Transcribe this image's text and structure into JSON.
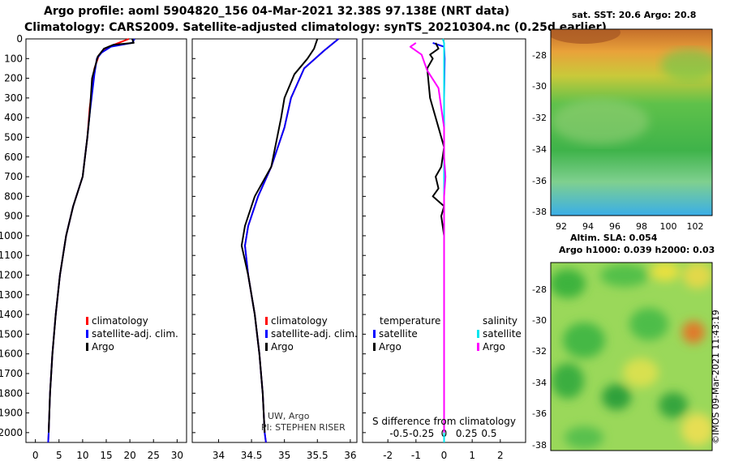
{
  "header": {
    "line1": "Argo profile: aoml 5904820_156 04-Mar-2021 32.38S 97.138E (NRT data)",
    "line2": "Climatology: CARS2009. Satellite-adjusted climatology: synTS_20210304.nc (0.25d earlier)"
  },
  "colors": {
    "climatology": "#ff0000",
    "satellite_adj": "#0000ff",
    "argo": "#000000",
    "temp_satellite": "#0000ff",
    "temp_argo": "#000000",
    "sal_satellite": "#00e5ee",
    "sal_argo": "#ff00ff"
  },
  "sst_map": {
    "title": "sat. SST: 20.6 Argo: 20.8",
    "lat_ticks": [
      "-28",
      "-30",
      "-32",
      "-34",
      "-36",
      "-38"
    ],
    "lon_ticks": [
      "92",
      "94",
      "96",
      "98",
      "100",
      "102"
    ]
  },
  "sla_map": {
    "title1": "Altim. SLA: 0.054",
    "title2": "Argo h1000: 0.039 h2000: 0.03",
    "lat_ticks": [
      "-28",
      "-30",
      "-32",
      "-34",
      "-36",
      "-38"
    ]
  },
  "credit": "©IMOS 09-Mar-2021 11:43:19",
  "chart_data": [
    {
      "type": "line",
      "name": "temperature-profile",
      "xlabel": "",
      "ylabel": "",
      "xlim": [
        -2,
        32
      ],
      "ylim": [
        2050,
        0
      ],
      "xticks": [
        0,
        5,
        10,
        15,
        20,
        25,
        30
      ],
      "yticks": [
        0,
        100,
        200,
        300,
        400,
        500,
        600,
        700,
        800,
        900,
        1000,
        1100,
        1200,
        1300,
        1400,
        1500,
        1600,
        1700,
        1800,
        1900,
        2000
      ],
      "legend": [
        "climatology",
        "satellite-adj. clim.",
        "Argo"
      ],
      "series": [
        {
          "name": "climatology",
          "color": "#ff0000",
          "points": [
            [
              19.8,
              0
            ],
            [
              15.5,
              40
            ],
            [
              13.5,
              80
            ],
            [
              12.5,
              150
            ],
            [
              12,
              250
            ],
            [
              11.5,
              350
            ],
            [
              11,
              500
            ],
            [
              10,
              700
            ],
            [
              8,
              850
            ],
            [
              6.5,
              1000
            ],
            [
              5.2,
              1200
            ],
            [
              4.3,
              1400
            ],
            [
              3.6,
              1600
            ],
            [
              3.1,
              1800
            ],
            [
              2.8,
              2000
            ],
            [
              2.7,
              2050
            ]
          ]
        },
        {
          "name": "satellite-adj. clim.",
          "color": "#0000ff",
          "points": [
            [
              21,
              0
            ],
            [
              20.5,
              20
            ],
            [
              16,
              40
            ],
            [
              14,
              70
            ],
            [
              13,
              100
            ],
            [
              12.5,
              180
            ],
            [
              12,
              280
            ],
            [
              11.5,
              380
            ],
            [
              11,
              500
            ],
            [
              10,
              700
            ],
            [
              8,
              850
            ],
            [
              6.5,
              1000
            ],
            [
              5.2,
              1200
            ],
            [
              4.3,
              1400
            ],
            [
              3.6,
              1600
            ],
            [
              3.1,
              1800
            ],
            [
              2.8,
              2000
            ],
            [
              2.7,
              2050
            ]
          ]
        },
        {
          "name": "Argo",
          "color": "#000000",
          "points": [
            [
              20.5,
              0
            ],
            [
              20.8,
              20
            ],
            [
              16.5,
              30
            ],
            [
              14.5,
              50
            ],
            [
              13.2,
              90
            ],
            [
              12,
              200
            ],
            [
              11.5,
              380
            ],
            [
              11,
              500
            ],
            [
              10,
              700
            ],
            [
              8,
              850
            ],
            [
              6.5,
              1000
            ],
            [
              5.2,
              1200
            ],
            [
              4.3,
              1400
            ],
            [
              3.6,
              1600
            ],
            [
              3.1,
              1800
            ],
            [
              2.8,
              2000
            ]
          ]
        }
      ]
    },
    {
      "type": "line",
      "name": "salinity-profile",
      "xlabel": "",
      "ylabel": "",
      "xlim": [
        33.6,
        36.1
      ],
      "ylim": [
        2050,
        0
      ],
      "xticks": [
        34,
        34.5,
        35,
        35.5,
        36
      ],
      "xtick_labels": [
        "34",
        "34.5",
        "35",
        "35.5",
        "36"
      ],
      "legend": [
        "climatology",
        "satellite-adj. clim.",
        "Argo"
      ],
      "annotation": [
        "UW, Argo",
        "PI: STEPHEN RISER"
      ],
      "series": [
        {
          "name": "climatology",
          "color": "#ff0000",
          "points": [
            [
              35.82,
              0
            ],
            [
              35.6,
              60
            ],
            [
              35.3,
              150
            ],
            [
              35.1,
              300
            ],
            [
              35.0,
              450
            ],
            [
              34.8,
              650
            ],
            [
              34.6,
              800
            ],
            [
              34.45,
              950
            ],
            [
              34.4,
              1050
            ],
            [
              34.45,
              1200
            ],
            [
              34.55,
              1400
            ],
            [
              34.62,
              1600
            ],
            [
              34.67,
              1800
            ],
            [
              34.7,
              2000
            ],
            [
              34.72,
              2050
            ]
          ]
        },
        {
          "name": "satellite-adj. clim.",
          "color": "#0000ff",
          "points": [
            [
              35.82,
              0
            ],
            [
              35.6,
              60
            ],
            [
              35.3,
              150
            ],
            [
              35.1,
              300
            ],
            [
              35.0,
              450
            ],
            [
              34.8,
              650
            ],
            [
              34.6,
              800
            ],
            [
              34.45,
              950
            ],
            [
              34.4,
              1050
            ],
            [
              34.45,
              1200
            ],
            [
              34.55,
              1400
            ],
            [
              34.62,
              1600
            ],
            [
              34.67,
              1800
            ],
            [
              34.7,
              2000
            ],
            [
              34.72,
              2050
            ]
          ]
        },
        {
          "name": "Argo",
          "color": "#000000",
          "points": [
            [
              35.5,
              0
            ],
            [
              35.45,
              50
            ],
            [
              35.35,
              100
            ],
            [
              35.15,
              180
            ],
            [
              35.0,
              300
            ],
            [
              34.95,
              400
            ],
            [
              34.8,
              650
            ],
            [
              34.55,
              800
            ],
            [
              34.4,
              950
            ],
            [
              34.35,
              1050
            ],
            [
              34.45,
              1200
            ],
            [
              34.55,
              1400
            ],
            [
              34.62,
              1600
            ],
            [
              34.67,
              1800
            ],
            [
              34.7,
              2000
            ]
          ]
        }
      ]
    },
    {
      "type": "line",
      "name": "difference-from-climatology",
      "xlabel": "S difference from climatology",
      "xlim": [
        -2.9,
        2.9
      ],
      "ylim": [
        2050,
        0
      ],
      "xticks": [
        -2,
        -1,
        0,
        1,
        2
      ],
      "secondary_xticks": [
        -0.5,
        -0.25,
        0,
        0.25,
        0.5
      ],
      "secondary_xtick_labels": [
        "-0.5",
        "-0.25",
        "0",
        "0.25",
        "0.5"
      ],
      "legend": {
        "temperature": "temperature",
        "salinity": "salinity",
        "satellite": "satellite",
        "argo": "Argo"
      },
      "series": [
        {
          "name": "temperature satellite",
          "color": "#0000ff",
          "points": [
            [
              -0.4,
              20
            ],
            [
              0,
              40
            ],
            [
              0.02,
              100
            ],
            [
              0,
              300
            ],
            [
              0,
              600
            ],
            [
              0,
              1000
            ],
            [
              0,
              1400
            ],
            [
              0,
              1800
            ],
            [
              0,
              2050
            ]
          ]
        },
        {
          "name": "temperature Argo",
          "color": "#000000",
          "points": [
            [
              -0.3,
              20
            ],
            [
              -0.2,
              50
            ],
            [
              -0.5,
              80
            ],
            [
              -0.4,
              100
            ],
            [
              -0.6,
              150
            ],
            [
              -0.5,
              300
            ],
            [
              -0.2,
              450
            ],
            [
              0,
              550
            ],
            [
              -0.1,
              650
            ],
            [
              -0.3,
              700
            ],
            [
              -0.2,
              760
            ],
            [
              -0.4,
              800
            ],
            [
              0,
              850
            ],
            [
              -0.1,
              900
            ],
            [
              0,
              1000
            ],
            [
              0,
              1400
            ],
            [
              0,
              1800
            ],
            [
              0,
              2000
            ]
          ]
        },
        {
          "name": "salinity satellite",
          "color": "#00e5ee",
          "points": [
            [
              -0.05,
              0
            ],
            [
              0,
              20
            ],
            [
              0,
              40
            ],
            [
              0,
              100
            ],
            [
              0,
              300
            ],
            [
              0,
              600
            ],
            [
              0,
              1000
            ],
            [
              0,
              1400
            ],
            [
              0,
              1800
            ],
            [
              0,
              2050
            ]
          ]
        },
        {
          "name": "salinity Argo",
          "color": "#ff00ff",
          "points": [
            [
              -1.0,
              20
            ],
            [
              -1.2,
              40
            ],
            [
              -0.8,
              80
            ],
            [
              -0.7,
              120
            ],
            [
              -0.6,
              160
            ],
            [
              -0.2,
              250
            ],
            [
              -0.1,
              350
            ],
            [
              0,
              450
            ],
            [
              0,
              600
            ],
            [
              0.05,
              700
            ],
            [
              0,
              800
            ],
            [
              0,
              1000
            ],
            [
              0,
              1400
            ],
            [
              0,
              1800
            ],
            [
              0,
              2000
            ]
          ]
        }
      ]
    }
  ]
}
